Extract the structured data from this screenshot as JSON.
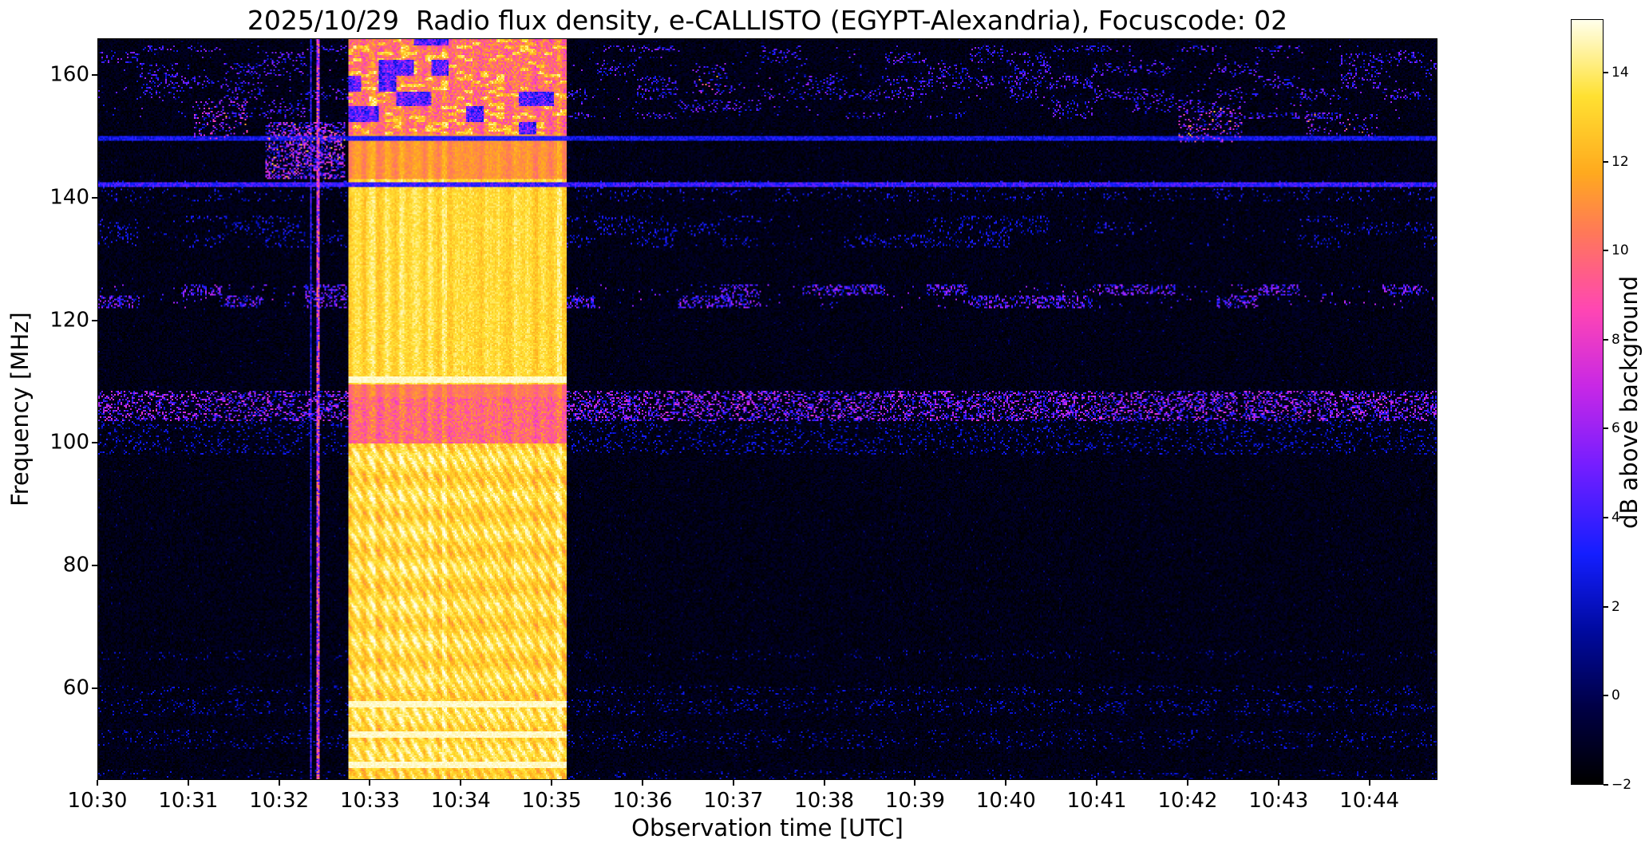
{
  "chart_data": {
    "type": "heatmap",
    "title": "2025/10/29  Radio flux density, e-CALLISTO (EGYPT-Alexandria), Focuscode: 02",
    "xlabel": "Observation time [UTC]",
    "ylabel": "Frequency [MHz]",
    "colorbar_label": "dB above background",
    "x_start_utc": "10:30",
    "x_duration_min": 14.75,
    "x_ticks": [
      {
        "label": "10:30",
        "minute": 0
      },
      {
        "label": "10:31",
        "minute": 1
      },
      {
        "label": "10:32",
        "minute": 2
      },
      {
        "label": "10:33",
        "minute": 3
      },
      {
        "label": "10:34",
        "minute": 4
      },
      {
        "label": "10:35",
        "minute": 5
      },
      {
        "label": "10:36",
        "minute": 6
      },
      {
        "label": "10:37",
        "minute": 7
      },
      {
        "label": "10:38",
        "minute": 8
      },
      {
        "label": "10:39",
        "minute": 9
      },
      {
        "label": "10:40",
        "minute": 10
      },
      {
        "label": "10:41",
        "minute": 11
      },
      {
        "label": "10:42",
        "minute": 12
      },
      {
        "label": "10:43",
        "minute": 13
      },
      {
        "label": "10:44",
        "minute": 14
      }
    ],
    "y_ticks": [
      160,
      140,
      120,
      100,
      80,
      60
    ],
    "ylim": [
      45,
      166
    ],
    "vlim": [
      -2,
      15.2
    ],
    "colorbar_ticks": [
      {
        "label": "14",
        "value": 14
      },
      {
        "label": "12",
        "value": 12
      },
      {
        "label": "10",
        "value": 10
      },
      {
        "label": "8",
        "value": 8
      },
      {
        "label": "6",
        "value": 6
      },
      {
        "label": "4",
        "value": 4
      },
      {
        "label": "2",
        "value": 2
      },
      {
        "label": "0",
        "value": 0
      },
      {
        "label": "−2",
        "value": -2
      }
    ],
    "colormap_stops": [
      [
        0.0,
        [
          0,
          0,
          0
        ]
      ],
      [
        0.1,
        [
          0,
          0,
          70
        ]
      ],
      [
        0.2,
        [
          0,
          10,
          160
        ]
      ],
      [
        0.3,
        [
          20,
          30,
          255
        ]
      ],
      [
        0.42,
        [
          120,
          30,
          255
        ]
      ],
      [
        0.52,
        [
          200,
          40,
          230
        ]
      ],
      [
        0.62,
        [
          255,
          70,
          180
        ]
      ],
      [
        0.72,
        [
          255,
          120,
          90
        ]
      ],
      [
        0.8,
        [
          255,
          170,
          30
        ]
      ],
      [
        0.9,
        [
          255,
          225,
          50
        ]
      ],
      [
        1.0,
        [
          255,
          255,
          235
        ]
      ]
    ],
    "features": {
      "burst": {
        "start_min": 2.75,
        "end_min": 5.17,
        "peak_db": 15,
        "description": "broadband solar radio burst ~10:32:45-10:35:10 UTC covering 45-166 MHz"
      },
      "vertical_stripes": [
        {
          "t_min": [
            2.4,
            2.435
          ],
          "max_db": 11
        },
        {
          "t_min": [
            2.335,
            2.355
          ],
          "max_db": 5
        }
      ],
      "rfi_lines": [
        {
          "freq_mhz": 149.8,
          "db": 3
        },
        {
          "freq_mhz": 142.2,
          "db": 4
        }
      ],
      "burst_white_lines_mhz": [
        110.3,
        57.2,
        52.2,
        47.3
      ],
      "burst_dim_band_mhz": [
        100,
        107.5
      ],
      "burst_top_band_mhz": [
        150.5,
        166
      ],
      "speckle_bands": [
        {
          "range_mhz": [
            103.5,
            108.5
          ],
          "density": 0.35,
          "max_db": 8,
          "clumpy": false
        },
        {
          "range_mhz": [
            98,
            103.5
          ],
          "density": 0.12,
          "max_db": 3.5,
          "clumpy": false
        },
        {
          "range_mhz": [
            122,
            126
          ],
          "density": 0.12,
          "max_db": 7,
          "clumpy": true
        },
        {
          "range_mhz": [
            132,
            137
          ],
          "density": 0.05,
          "max_db": 4,
          "clumpy": true
        },
        {
          "range_mhz": [
            139.5,
            142.8
          ],
          "density": 0.07,
          "max_db": 4,
          "clumpy": false
        },
        {
          "range_mhz": [
            153,
            165
          ],
          "density": 0.06,
          "max_db": 6,
          "clumpy": true
        },
        {
          "range_mhz": [
            58.8,
            60.3
          ],
          "density": 0.09,
          "max_db": 3,
          "clumpy": false
        },
        {
          "range_mhz": [
            55.5,
            58
          ],
          "density": 0.1,
          "max_db": 3,
          "clumpy": false
        },
        {
          "range_mhz": [
            50,
            53
          ],
          "density": 0.08,
          "max_db": 3,
          "clumpy": false
        },
        {
          "range_mhz": [
            45,
            46.5
          ],
          "density": 0.06,
          "max_db": 3,
          "clumpy": false
        },
        {
          "range_mhz": [
            64.5,
            66
          ],
          "density": 0.05,
          "max_db": 2.5,
          "clumpy": false
        }
      ],
      "patches": [
        {
          "t_min": [
            1.85,
            2.72
          ],
          "freq_mhz": [
            143,
            152.5
          ],
          "density": 0.5,
          "max_db": 8
        },
        {
          "t_min": [
            1.05,
            1.65
          ],
          "freq_mhz": [
            149.5,
            156
          ],
          "density": 0.18,
          "max_db": 8
        },
        {
          "t_min": [
            11.9,
            12.6
          ],
          "freq_mhz": [
            149,
            155
          ],
          "density": 0.2,
          "max_db": 8
        },
        {
          "t_min": [
            6.55,
            7.0
          ],
          "freq_mhz": [
            157,
            162
          ],
          "density": 0.18,
          "max_db": 6
        },
        {
          "t_min": [
            13.3,
            14.1
          ],
          "freq_mhz": [
            150,
            154
          ],
          "density": 0.12,
          "max_db": 6
        }
      ]
    }
  }
}
